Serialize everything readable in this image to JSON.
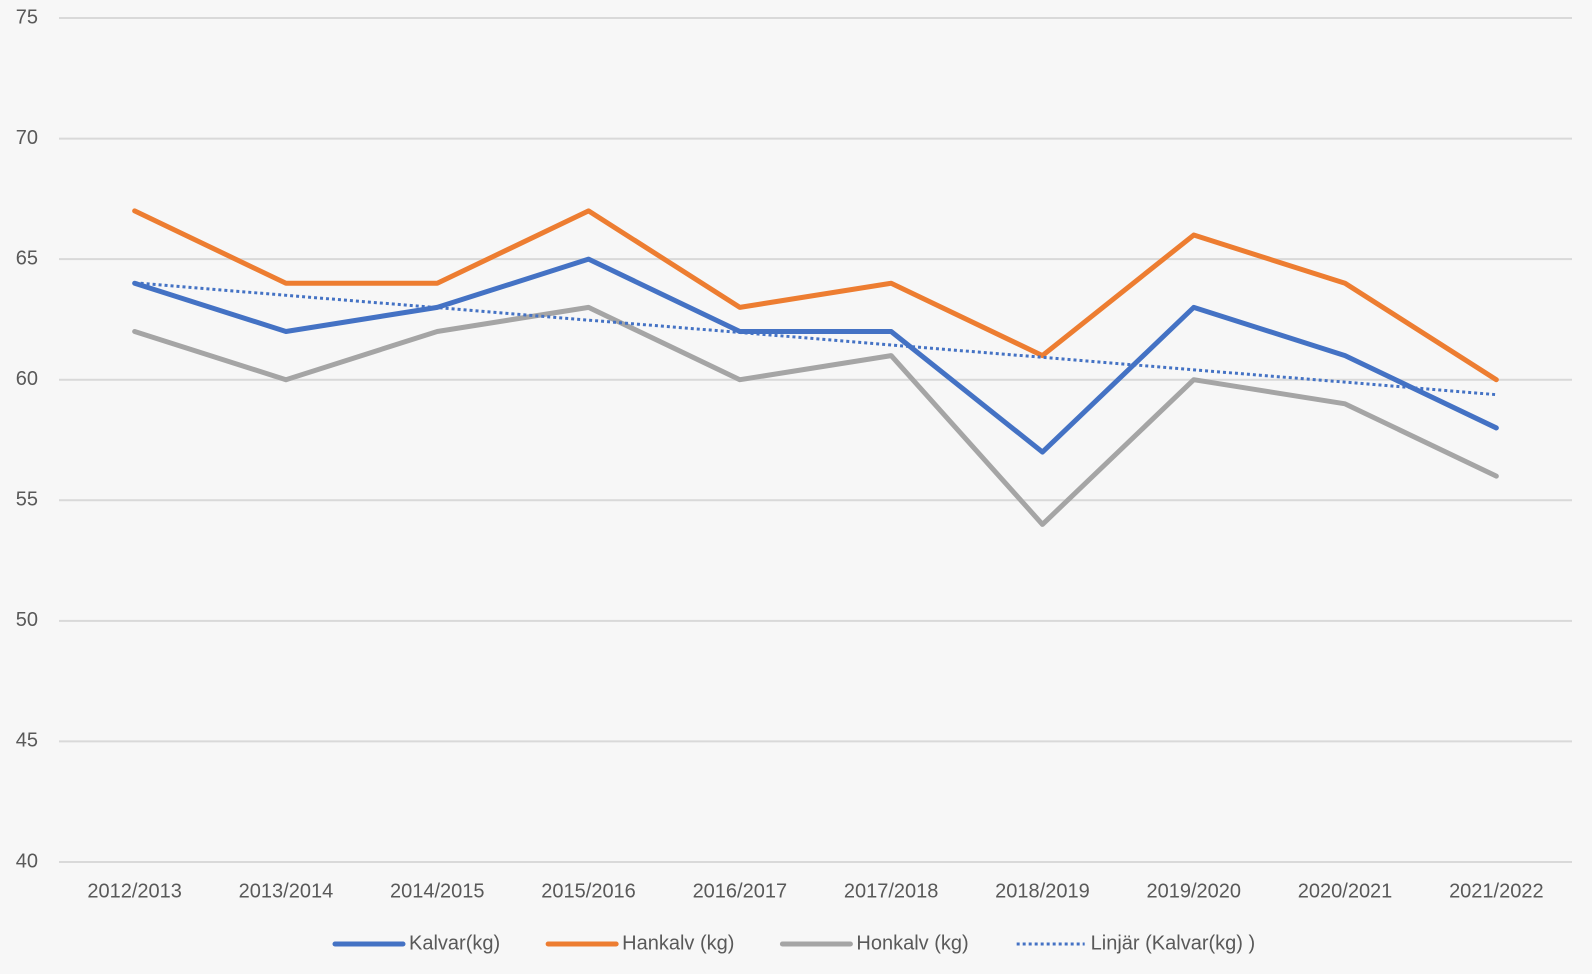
{
  "chart_data": {
    "type": "line",
    "categories": [
      "2012/2013",
      "2013/2014",
      "2014/2015",
      "2015/2016",
      "2016/2017",
      "2017/2018",
      "2018/2019",
      "2019/2020",
      "2020/2021",
      "2021/2022"
    ],
    "series": [
      {
        "name": "Kalvar(kg)",
        "color": "#4472c4",
        "values": [
          64,
          62,
          63,
          65,
          62,
          62,
          57,
          63,
          61,
          58
        ]
      },
      {
        "name": "Hankalv (kg)",
        "color": "#ed7d31",
        "values": [
          67,
          64,
          64,
          67,
          63,
          64,
          61,
          66,
          64,
          60
        ]
      },
      {
        "name": "Honkalv (kg)",
        "color": "#a5a5a5",
        "values": [
          62,
          60,
          62,
          63,
          60,
          61,
          54,
          60,
          59,
          56
        ]
      },
      {
        "name": "Linjär (Kalvar(kg) )",
        "color": "#4472c4",
        "dash": "dotted",
        "values": [
          64.02,
          63.5,
          62.99,
          62.47,
          61.96,
          61.44,
          60.93,
          60.41,
          59.9,
          59.38
        ]
      }
    ],
    "ylim": [
      40,
      75
    ],
    "yticks": [
      40,
      45,
      50,
      55,
      60,
      65,
      70,
      75
    ],
    "grid": true,
    "legend": "bottom"
  }
}
